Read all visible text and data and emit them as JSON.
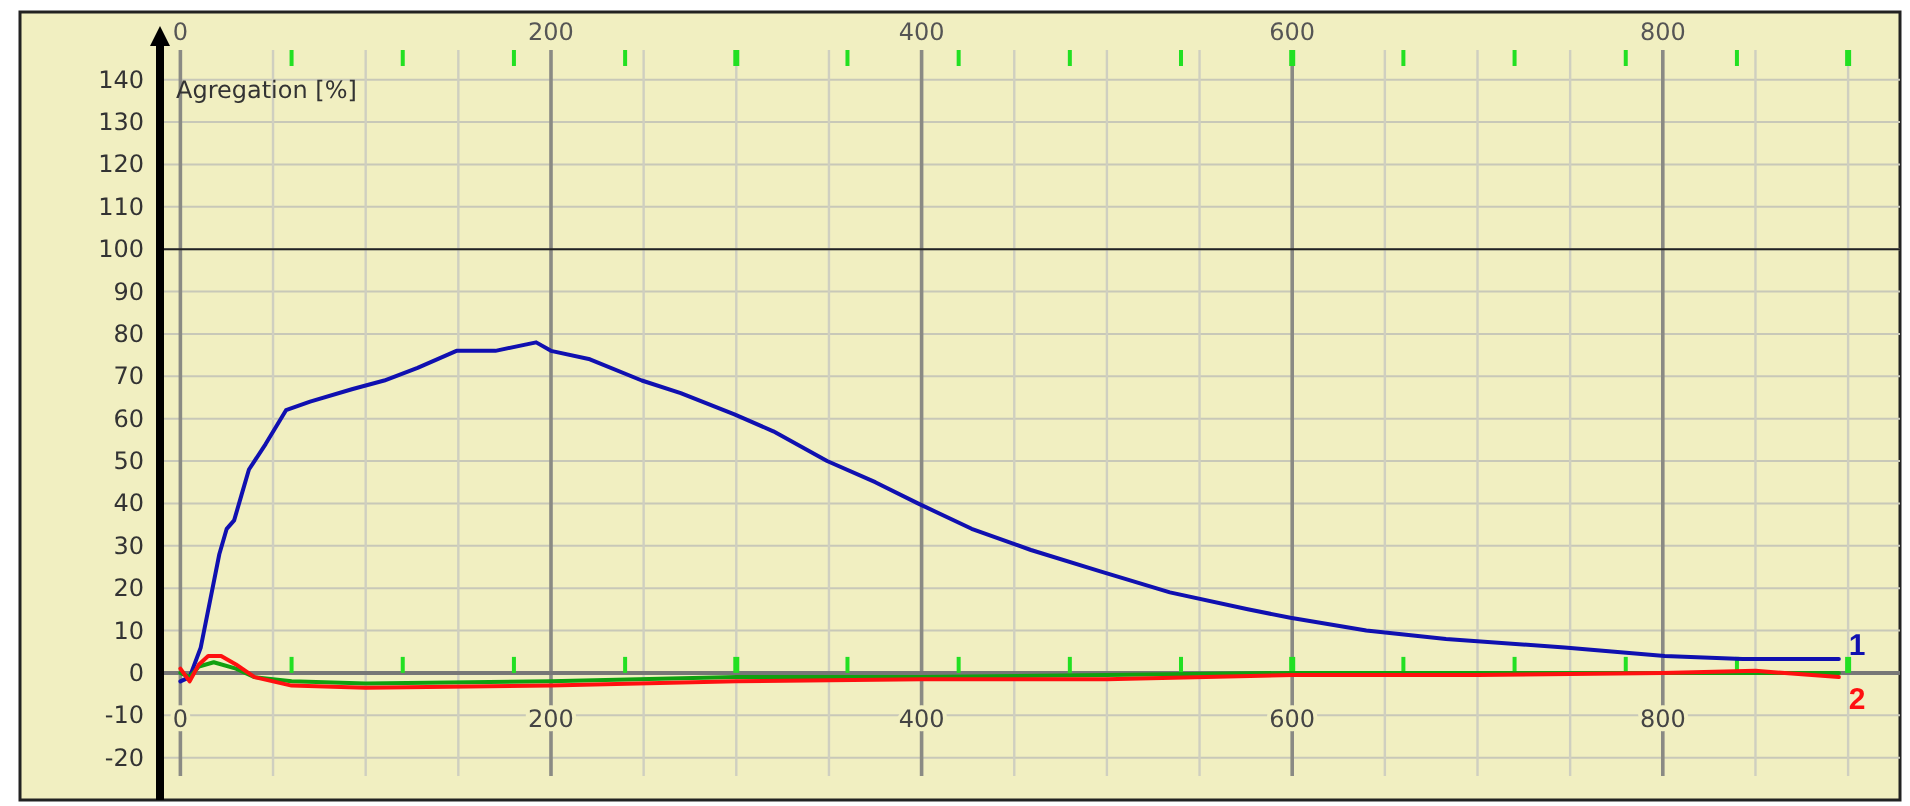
{
  "chart_data": {
    "type": "line",
    "ylabel": "Agregation [%]",
    "xlim": [
      -11,
      928
    ],
    "ylim": [
      -30,
      147
    ],
    "xticks": [
      0,
      {
        "value": 50,
        "label": null
      },
      {
        "value": 100,
        "label": null
      },
      {
        "value": 150,
        "label": null
      },
      200,
      {
        "value": 250,
        "label": null
      },
      {
        "value": 300,
        "label": null
      },
      {
        "value": 350,
        "label": null
      },
      400,
      {
        "value": 450,
        "label": null
      },
      {
        "value": 500,
        "label": null
      },
      {
        "value": 550,
        "label": null
      },
      600,
      {
        "value": 650,
        "label": null
      },
      {
        "value": 700,
        "label": null
      },
      {
        "value": 750,
        "label": null
      },
      800,
      {
        "value": 850,
        "label": null
      },
      {
        "value": 900,
        "label": null
      }
    ],
    "x2lim": [
      -11,
      928
    ],
    "x2ticks": [
      0,
      200,
      400,
      600,
      800,
      {
        "value": 60,
        "label": null
      },
      {
        "value": 120,
        "label": null
      },
      {
        "value": 180,
        "label": null
      },
      {
        "value": 240,
        "label": null
      },
      {
        "value": 300,
        "label": null
      },
      {
        "value": 360,
        "label": null
      },
      {
        "value": 420,
        "label": null
      },
      {
        "value": 480,
        "label": null
      },
      {
        "value": 540,
        "label": null
      },
      {
        "value": 600,
        "label": null
      },
      {
        "value": 660,
        "label": null
      },
      {
        "value": 720,
        "label": null
      },
      {
        "value": 780,
        "label": null
      },
      {
        "value": 840,
        "label": null
      },
      {
        "value": 900,
        "label": null
      }
    ],
    "yticks": [
      -20,
      -10,
      0,
      10,
      20,
      30,
      40,
      50,
      60,
      70,
      80,
      90,
      100,
      110,
      120,
      130,
      140
    ],
    "grid": true,
    "marker": "none",
    "line_style": "solid",
    "ref_lines": [
      {
        "axis": "y",
        "value": 100,
        "color": "#222222"
      }
    ],
    "series": [
      {
        "name": "1",
        "color": "#1010b0",
        "x": [
          0,
          5,
          11,
          16,
          21,
          25,
          29,
          33,
          37,
          46,
          57,
          70,
          93,
          110,
          128,
          149,
          170,
          192,
          200,
          221,
          249,
          270,
          299,
          320,
          349,
          375,
          398,
          427,
          459,
          496,
          534,
          576,
          599,
          640,
          683,
          747,
          801,
          843,
          895
        ],
        "values": [
          -2,
          -1,
          6,
          17,
          28,
          34,
          36,
          42,
          48,
          54,
          62,
          64,
          67,
          69,
          72,
          76,
          76,
          78,
          76,
          74,
          69,
          66,
          61,
          57,
          50,
          45,
          40,
          34,
          29,
          24,
          19,
          15,
          13,
          10,
          8,
          6,
          4,
          3.3,
          3.3
        ]
      },
      {
        "color": "#10a010",
        "x": [
          0,
          5,
          10,
          18,
          30,
          40,
          60,
          100,
          200,
          300,
          400,
          500,
          600,
          700,
          800,
          895
        ],
        "values": [
          0,
          -1,
          1.5,
          2.5,
          1,
          -1,
          -2,
          -2.5,
          -2,
          -1,
          -1,
          -0.5,
          0,
          0,
          0,
          0
        ]
      },
      {
        "name": "2",
        "color": "#ff1010",
        "x": [
          0,
          5,
          10,
          15,
          22,
          30,
          40,
          60,
          100,
          200,
          300,
          400,
          500,
          600,
          700,
          800,
          850,
          895
        ],
        "values": [
          1,
          -2,
          2,
          4,
          4,
          2,
          -1,
          -3,
          -3.5,
          -3,
          -2,
          -1.5,
          -1.5,
          -0.5,
          -0.5,
          0,
          0.5,
          -1
        ]
      }
    ]
  }
}
